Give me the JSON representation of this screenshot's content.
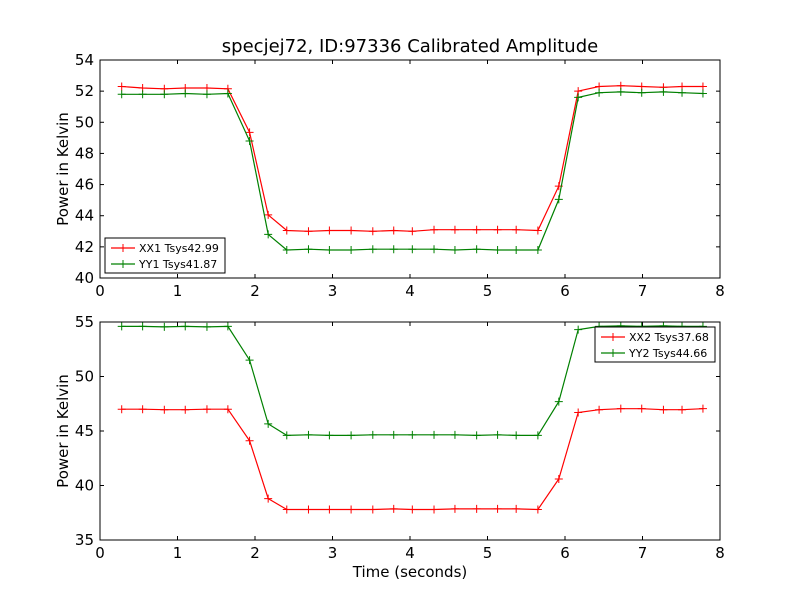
{
  "title": "specjej72, ID:97336 Calibrated Amplitude",
  "colors": {
    "xx": "#ff0000",
    "yy": "#008000"
  },
  "chart_data": [
    {
      "type": "line",
      "xlabel": "",
      "ylabel": "Power in Kelvin",
      "xlim": [
        0,
        8
      ],
      "ylim": [
        40,
        54
      ],
      "xticks": [
        0,
        1,
        2,
        3,
        4,
        5,
        6,
        7,
        8
      ],
      "yticks": [
        40,
        42,
        44,
        46,
        48,
        50,
        52,
        54
      ],
      "legend_position": "lower-left",
      "x": [
        0.28,
        0.55,
        0.83,
        1.1,
        1.38,
        1.65,
        1.93,
        2.17,
        2.41,
        2.69,
        2.96,
        3.24,
        3.52,
        3.79,
        4.03,
        4.31,
        4.58,
        4.86,
        5.13,
        5.37,
        5.65,
        5.92,
        6.17,
        6.44,
        6.72,
        6.99,
        7.27,
        7.51,
        7.78
      ],
      "series": [
        {
          "name": "XX1 Tsys42.99",
          "color": "#ff0000",
          "values": [
            52.3,
            52.2,
            52.15,
            52.2,
            52.2,
            52.15,
            49.35,
            44.05,
            43.05,
            43.0,
            43.05,
            43.05,
            43.0,
            43.05,
            43.0,
            43.1,
            43.1,
            43.1,
            43.1,
            43.1,
            43.05,
            45.9,
            52.0,
            52.3,
            52.35,
            52.3,
            52.25,
            52.3,
            52.3
          ]
        },
        {
          "name": "YY1 Tsys41.87",
          "color": "#008000",
          "values": [
            51.8,
            51.8,
            51.8,
            51.85,
            51.8,
            51.85,
            48.8,
            42.8,
            41.8,
            41.85,
            41.8,
            41.8,
            41.85,
            41.85,
            41.85,
            41.85,
            41.8,
            41.85,
            41.8,
            41.8,
            41.8,
            45.05,
            51.6,
            51.9,
            51.95,
            51.9,
            51.95,
            51.9,
            51.85
          ]
        }
      ]
    },
    {
      "type": "line",
      "xlabel": "Time (seconds)",
      "ylabel": "Power in Kelvin",
      "xlim": [
        0,
        8
      ],
      "ylim": [
        35,
        55
      ],
      "xticks": [
        0,
        1,
        2,
        3,
        4,
        5,
        6,
        7,
        8
      ],
      "yticks": [
        35,
        40,
        45,
        50,
        55
      ],
      "legend_position": "upper-right",
      "x": [
        0.28,
        0.55,
        0.83,
        1.1,
        1.38,
        1.65,
        1.93,
        2.17,
        2.41,
        2.69,
        2.96,
        3.24,
        3.52,
        3.79,
        4.03,
        4.31,
        4.58,
        4.86,
        5.13,
        5.37,
        5.65,
        5.92,
        6.17,
        6.44,
        6.72,
        6.99,
        7.27,
        7.51,
        7.78
      ],
      "series": [
        {
          "name": "XX2 Tsys37.68",
          "color": "#ff0000",
          "values": [
            47.0,
            47.0,
            46.95,
            46.95,
            47.0,
            47.0,
            44.1,
            38.8,
            37.8,
            37.8,
            37.8,
            37.8,
            37.8,
            37.85,
            37.8,
            37.8,
            37.85,
            37.85,
            37.85,
            37.85,
            37.8,
            40.6,
            46.7,
            46.95,
            47.05,
            47.05,
            46.95,
            46.95,
            47.05
          ]
        },
        {
          "name": "YY2 Tsys44.66",
          "color": "#008000",
          "values": [
            54.6,
            54.6,
            54.55,
            54.6,
            54.55,
            54.6,
            51.5,
            45.65,
            44.6,
            44.65,
            44.6,
            44.6,
            44.65,
            44.65,
            44.65,
            44.65,
            44.65,
            44.6,
            44.65,
            44.6,
            44.6,
            47.7,
            54.3,
            54.6,
            54.65,
            54.6,
            54.65,
            54.6,
            54.6
          ]
        }
      ]
    }
  ]
}
